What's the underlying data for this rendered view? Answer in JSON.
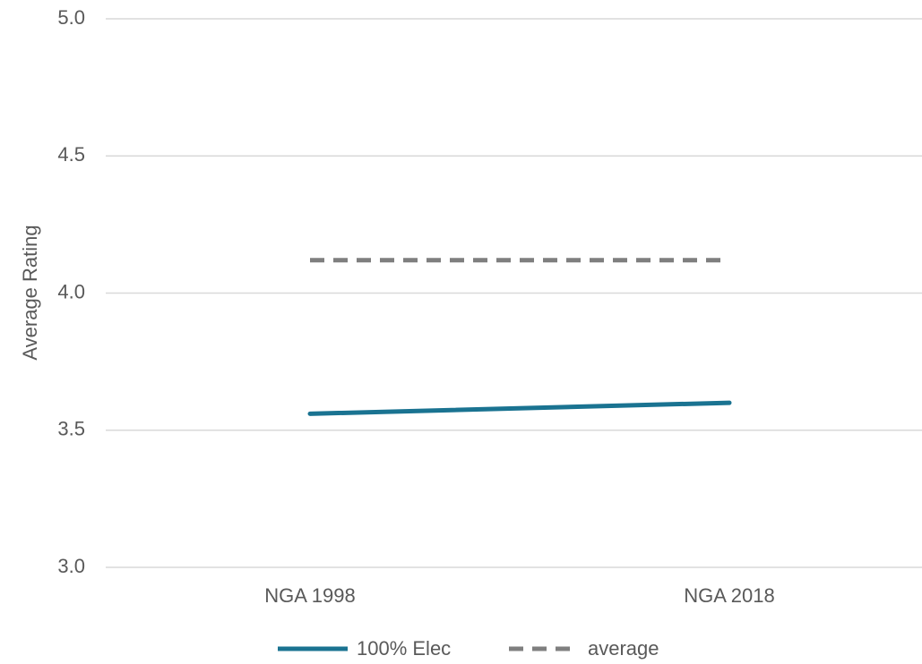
{
  "chart_data": {
    "type": "line",
    "y_label": "Average Rating",
    "categories": [
      "NGA 1998",
      "NGA 2018"
    ],
    "series": [
      {
        "name": "100% Elec",
        "color": "#1a7391",
        "dash": false,
        "values": [
          3.56,
          3.6
        ]
      },
      {
        "name": "average",
        "color": "#7f7f7f",
        "dash": true,
        "values": [
          4.12,
          4.12
        ]
      }
    ],
    "ylim": [
      3,
      5
    ],
    "yticks": [
      {
        "value": 3,
        "label": "3.0"
      },
      {
        "value": 3.5,
        "label": "3.5"
      },
      {
        "value": 4,
        "label": "4.0"
      },
      {
        "value": 4.5,
        "label": "4.5"
      },
      {
        "value": 5,
        "label": "5.0"
      }
    ],
    "grid": true,
    "legend": "bottom"
  }
}
